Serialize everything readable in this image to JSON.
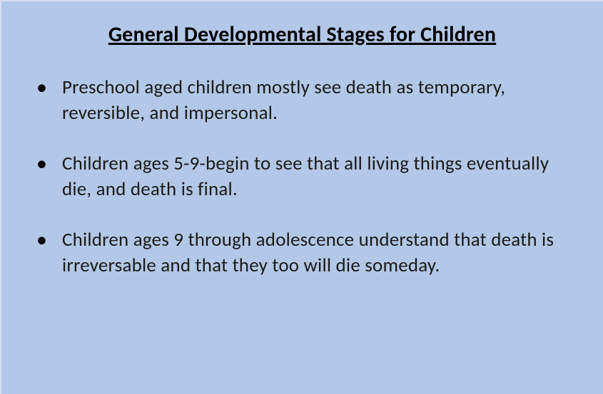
{
  "slide": {
    "title": "General Developmental Stages for Children",
    "background_color": "#b3c7e6",
    "text_color": "#1a1a1a",
    "title_color": "#000000",
    "title_fontsize": 30,
    "body_fontsize": 27,
    "bullets": [
      "Preschool aged children mostly see death as temporary, reversible, and impersonal.",
      "Children ages 5-9-begin to see that all living things eventually die, and death is final.",
      "Children ages 9 through adolescence understand that death is irreversable and that they too will die someday."
    ]
  }
}
